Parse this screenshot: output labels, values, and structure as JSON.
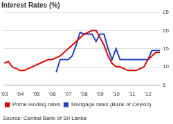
{
  "chart_data": {
    "type": "line",
    "title": "Interest Rates (%)",
    "source": "Source: Central Bank of Sri Lanka",
    "categories": [
      "'03",
      null,
      null,
      null,
      "'04",
      null,
      null,
      null,
      "'05",
      null,
      null,
      null,
      "'06",
      null,
      null,
      null,
      "'07",
      null,
      null,
      null,
      "'08",
      null,
      null,
      null,
      "'09",
      null,
      null,
      null,
      "'10",
      null,
      null,
      null,
      "'11",
      null,
      null,
      null,
      "'12",
      null,
      null,
      null
    ],
    "series": [
      {
        "name": "Prime lending rates",
        "color": "#e00000",
        "values": [
          11,
          11.5,
          10,
          9.5,
          9,
          9,
          9.5,
          10,
          10.5,
          11,
          11.5,
          12,
          12,
          12.5,
          13,
          14,
          15,
          16,
          17,
          18,
          19,
          19.5,
          20,
          20,
          18,
          16,
          13,
          11,
          10,
          10,
          9.5,
          9,
          9,
          9,
          9.5,
          10,
          12,
          13,
          14,
          14
        ]
      },
      {
        "name": "Mortgage rates (Bank of Ceylon)",
        "color": "#1f3fbf",
        "values": [
          null,
          null,
          null,
          null,
          null,
          null,
          null,
          null,
          null,
          null,
          null,
          null,
          null,
          8.5,
          12,
          12,
          12,
          13,
          16,
          19.5,
          19,
          19,
          19,
          17,
          19,
          19,
          15,
          12,
          15,
          12,
          12,
          12,
          12,
          12,
          12,
          12,
          12,
          14.5,
          14.5,
          14.5
        ]
      }
    ],
    "ylim": [
      5,
      25
    ],
    "yticks": [
      5,
      10,
      15,
      20,
      25
    ],
    "grid": true,
    "legend": "bottom"
  }
}
